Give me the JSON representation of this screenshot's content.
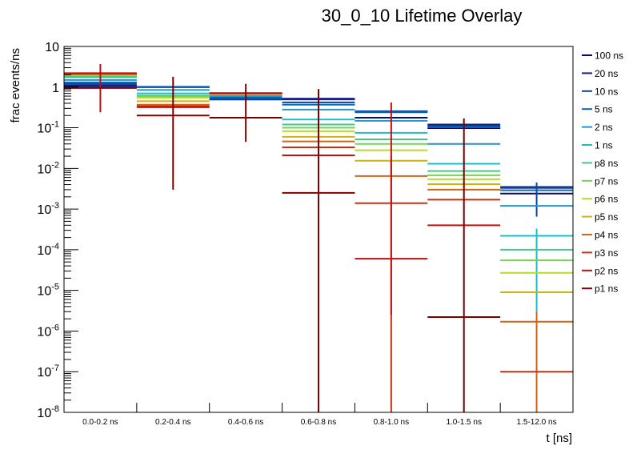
{
  "chart_data": {
    "type": "line",
    "subtype": "histogram-overlay-with-error-bars",
    "title": "30_0_10 Lifetime Overlay",
    "xlabel": "t [ns]",
    "ylabel": "frac events/ns",
    "yscale": "log",
    "ylim": [
      1e-08,
      10
    ],
    "y_tick_labels": [
      "10",
      "1",
      "10^-1",
      "10^-2",
      "10^-3",
      "10^-4",
      "10^-5",
      "10^-6",
      "10^-7",
      "10^-8"
    ],
    "categories": [
      "0.0-0.2 ns",
      "0.2-0.4 ns",
      "0.4-0.6 ns",
      "0.6-0.8 ns",
      "0.8-1.0 ns",
      "1.0-1.5 ns",
      "1.5-12.0 ns"
    ],
    "legend_placement": "right",
    "series": [
      {
        "name": "100 ns",
        "color": "#0a0a6e",
        "values": [
          1.05,
          1.0,
          0.5,
          0.52,
          0.177,
          0.098,
          0.0024
        ],
        "errors": [
          null,
          null,
          null,
          null,
          null,
          null,
          null
        ]
      },
      {
        "name": "20 ns",
        "color": "#0c2382",
        "values": [
          1.1,
          1.0,
          0.5,
          0.5,
          0.25,
          0.12,
          0.0035
        ],
        "errors": [
          null,
          null,
          null,
          null,
          null,
          null,
          null
        ]
      },
      {
        "name": "10 ns",
        "color": "#0a46a0",
        "values": [
          1.2,
          1.02,
          0.5,
          0.42,
          0.255,
          0.11,
          0.0033
        ],
        "errors": [
          null,
          null,
          null,
          null,
          null,
          null,
          [
            0.00065,
            0.0045
          ]
        ]
      },
      {
        "name": "5 ns",
        "color": "#1464b4",
        "values": [
          1.3,
          1.0,
          0.55,
          0.37,
          0.24,
          0.103,
          0.0029
        ],
        "errors": [
          null,
          null,
          null,
          null,
          null,
          null,
          null
        ]
      },
      {
        "name": "2 ns",
        "color": "#1e96c8",
        "values": [
          1.5,
          0.85,
          0.6,
          0.28,
          0.148,
          0.04,
          0.0012
        ],
        "errors": [
          null,
          null,
          null,
          null,
          null,
          null,
          null
        ]
      },
      {
        "name": "1 ns",
        "color": "#1ebec8",
        "values": [
          1.75,
          0.7,
          0.72,
          0.16,
          0.075,
          0.013,
          0.00022
        ],
        "errors": [
          null,
          null,
          null,
          null,
          null,
          null,
          [
            3e-06,
            0.00033
          ]
        ]
      },
      {
        "name": "p8 ns",
        "color": "#46c88c",
        "values": [
          1.85,
          0.62,
          0.7,
          0.12,
          0.052,
          0.0086,
          0.0001
        ],
        "errors": [
          null,
          null,
          null,
          null,
          null,
          null,
          null
        ]
      },
      {
        "name": "p7 ns",
        "color": "#78d250",
        "values": [
          1.95,
          0.58,
          0.7,
          0.1,
          0.04,
          0.0068,
          5.5e-05
        ],
        "errors": [
          null,
          null,
          null,
          null,
          null,
          null,
          null
        ]
      },
      {
        "name": "p6 ns",
        "color": "#b4dc28",
        "values": [
          2.0,
          0.55,
          0.68,
          0.082,
          0.028,
          0.0054,
          2.7e-05
        ],
        "errors": [
          null,
          null,
          null,
          null,
          null,
          null,
          null
        ]
      },
      {
        "name": "p5 ns",
        "color": "#c8b414",
        "values": [
          2.05,
          0.45,
          0.68,
          0.06,
          0.0154,
          0.0041,
          9e-06
        ],
        "errors": [
          null,
          null,
          null,
          null,
          null,
          null,
          null
        ]
      },
      {
        "name": "p4 ns",
        "color": "#d26414",
        "values": [
          2.1,
          0.37,
          0.68,
          0.046,
          0.0065,
          0.003,
          1.7e-06
        ],
        "errors": [
          null,
          null,
          null,
          null,
          null,
          null,
          [
            1e-09,
            3e-06
          ]
        ]
      },
      {
        "name": "p3 ns",
        "color": "#c83214",
        "values": [
          2.15,
          0.34,
          0.7,
          0.033,
          0.0014,
          0.0017,
          1e-07
        ],
        "errors": [
          null,
          null,
          null,
          null,
          [
            1e-09,
            0.02
          ],
          null,
          null
        ]
      },
      {
        "name": "p2 ns",
        "color": "#c01010",
        "values": [
          2.2,
          0.32,
          0.7,
          0.021,
          6e-05,
          0.0004,
          null
        ],
        "errors": [
          [
            0.24,
            3.7
          ],
          null,
          null,
          null,
          [
            2.5e-06,
            0.42
          ],
          null,
          null
        ]
      },
      {
        "name": "p1 ns",
        "color": "#800000",
        "values": [
          0.95,
          0.2,
          0.177,
          0.0025,
          null,
          2.2e-06,
          null
        ],
        "errors": [
          null,
          [
            0.003,
            1.8
          ],
          [
            0.045,
            1.2
          ],
          [
            1e-09,
            0.9
          ],
          null,
          [
            1e-09,
            0.17
          ],
          null
        ]
      }
    ]
  }
}
